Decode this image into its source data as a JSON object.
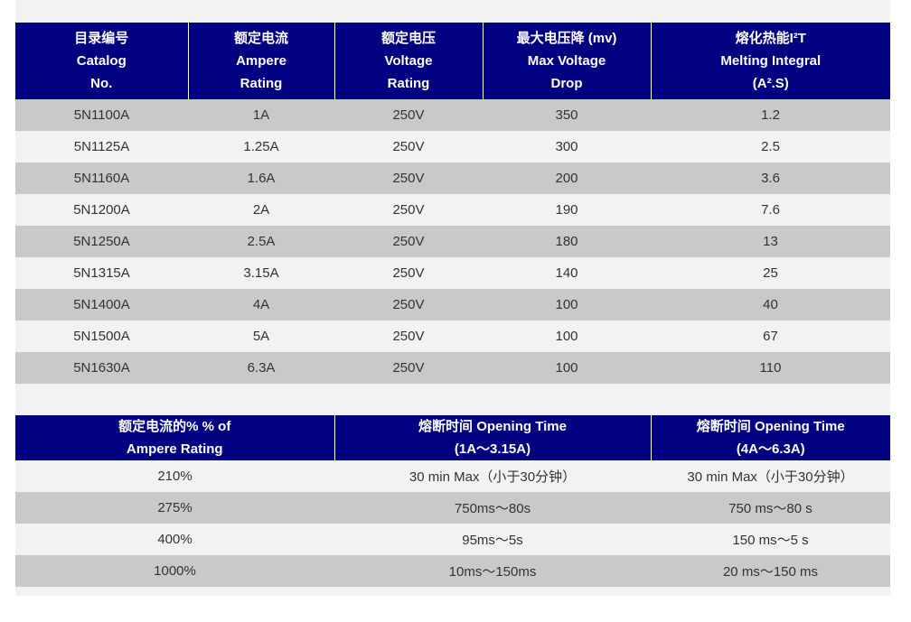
{
  "table1": {
    "header": [
      [
        "目录编号",
        "Catalog",
        "No."
      ],
      [
        "额定电流",
        "Ampere",
        "Rating"
      ],
      [
        "额定电压",
        "Voltage",
        "Rating"
      ],
      [
        "最大电压降 (mv)",
        "Max Voltage",
        "Drop"
      ],
      [
        "熔化热能I²T",
        "Melting Integral",
        "(A².S)"
      ]
    ],
    "rows": [
      [
        "5N1100A",
        "1A",
        "250V",
        "350",
        "1.2"
      ],
      [
        "5N1125A",
        "1.25A",
        "250V",
        "300",
        "2.5"
      ],
      [
        "5N1160A",
        "1.6A",
        "250V",
        "200",
        "3.6"
      ],
      [
        "5N1200A",
        "2A",
        "250V",
        "190",
        "7.6"
      ],
      [
        "5N1250A",
        "2.5A",
        "250V",
        "180",
        "13"
      ],
      [
        "5N1315A",
        "3.15A",
        "250V",
        "140",
        "25"
      ],
      [
        "5N1400A",
        "4A",
        "250V",
        "100",
        "40"
      ],
      [
        "5N1500A",
        "5A",
        "250V",
        "100",
        "67"
      ],
      [
        "5N1630A",
        "6.3A",
        "250V",
        "100",
        "110"
      ]
    ]
  },
  "table2": {
    "header": [
      [
        "额定电流的%  % of",
        "Ampere Rating"
      ],
      [
        "熔断时间 Opening Time",
        "(1A～3.15A)"
      ],
      [
        "熔断时间 Opening Time",
        "(4A～6.3A)"
      ]
    ],
    "rows": [
      [
        "210%",
        "30 min Max（小于30分钟）",
        "30 min Max（小于30分钟）"
      ],
      [
        "275%",
        "750ms～80s",
        "750 ms～80 s"
      ],
      [
        "400%",
        "95ms～5s",
        "150 ms～5 s"
      ],
      [
        "1000%",
        "10ms～150ms",
        "20 ms～150 ms"
      ]
    ]
  }
}
